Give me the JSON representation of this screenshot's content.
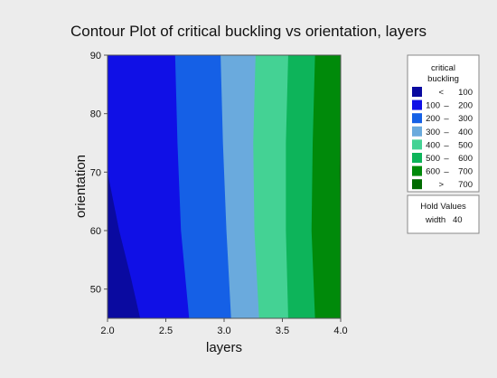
{
  "chart_data": {
    "type": "contour",
    "title": "Contour Plot of critical buckling vs orientation, layers",
    "xlabel": "layers",
    "ylabel": "orientation",
    "xlim": [
      2.0,
      4.0
    ],
    "ylim": [
      45,
      90
    ],
    "xticks": [
      "2.0",
      "2.5",
      "3.0",
      "3.5",
      "4.0"
    ],
    "yticks": [
      "50",
      "60",
      "70",
      "80",
      "90"
    ],
    "legend": {
      "title_line1": "critical",
      "title_line2": "buckling",
      "levels": [
        {
          "lo": "<",
          "hi": "100",
          "color": "#0a0aa0"
        },
        {
          "lo": "100",
          "hi": "200",
          "color": "#1010e6"
        },
        {
          "lo": "200",
          "hi": "300",
          "color": "#1560e6"
        },
        {
          "lo": "300",
          "hi": "400",
          "color": "#6aaadd"
        },
        {
          "lo": "400",
          "hi": "500",
          "color": "#44d294"
        },
        {
          "lo": "500",
          "hi": "600",
          "color": "#0db45a"
        },
        {
          "lo": "600",
          "hi": "700",
          "color": "#008a0a"
        },
        {
          "lo": ">",
          "hi": "700",
          "color": "#006b00"
        }
      ]
    },
    "hold_values": {
      "title": "Hold Values",
      "label": "width",
      "value": "40"
    },
    "boundaries": [
      {
        "level": 100,
        "points": [
          [
            2.0,
            70
          ],
          [
            2.1,
            60
          ],
          [
            2.2,
            52
          ],
          [
            2.28,
            45
          ]
        ]
      },
      {
        "level": 200,
        "points": [
          [
            2.58,
            90
          ],
          [
            2.6,
            75
          ],
          [
            2.63,
            60
          ],
          [
            2.7,
            45
          ]
        ]
      },
      {
        "level": 300,
        "points": [
          [
            2.97,
            90
          ],
          [
            2.99,
            75
          ],
          [
            3.02,
            60
          ],
          [
            3.06,
            45
          ]
        ]
      },
      {
        "level": 400,
        "points": [
          [
            3.27,
            90
          ],
          [
            3.25,
            75
          ],
          [
            3.26,
            60
          ],
          [
            3.3,
            45
          ]
        ]
      },
      {
        "level": 500,
        "points": [
          [
            3.55,
            90
          ],
          [
            3.53,
            75
          ],
          [
            3.53,
            60
          ],
          [
            3.55,
            45
          ]
        ]
      },
      {
        "level": 600,
        "points": [
          [
            3.78,
            90
          ],
          [
            3.76,
            75
          ],
          [
            3.75,
            60
          ],
          [
            3.78,
            45
          ]
        ]
      },
      {
        "level": 700,
        "points": [
          [
            4.0,
            80
          ],
          [
            3.99,
            70
          ],
          [
            4.0,
            60
          ]
        ]
      }
    ]
  }
}
